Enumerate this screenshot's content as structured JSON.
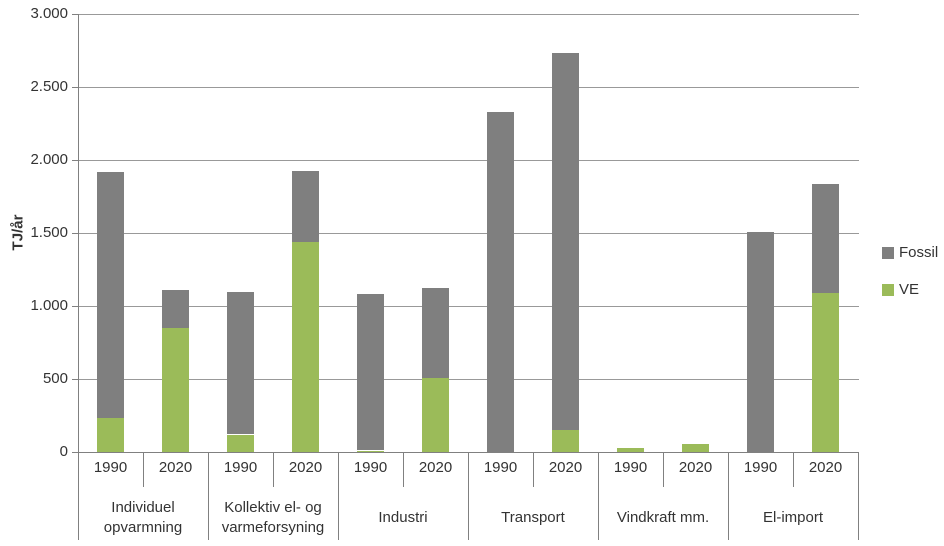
{
  "chart_data": {
    "type": "bar",
    "stacked": true,
    "title": "",
    "ylabel": "TJ/år",
    "xlabel": "",
    "ylim": [
      0,
      3000
    ],
    "ytick_step": 500,
    "ytick_labels": [
      "0",
      "500",
      "1.000",
      "1.500",
      "2.000",
      "2.500",
      "3.000"
    ],
    "grid": true,
    "legend_position": "right",
    "categories": [
      "1990",
      "2020",
      "1990",
      "2020",
      "1990",
      "2020",
      "1990",
      "2020",
      "1990",
      "2020",
      "1990",
      "2020"
    ],
    "group_labels": [
      {
        "lines": [
          "Individuel",
          "opvarmning"
        ]
      },
      {
        "lines": [
          "Kollektiv el- og",
          "varmeforsyning"
        ]
      },
      {
        "lines": [
          "Industri"
        ]
      },
      {
        "lines": [
          "Transport"
        ]
      },
      {
        "lines": [
          "Vindkraft mm."
        ]
      },
      {
        "lines": [
          "El-import"
        ]
      }
    ],
    "series": [
      {
        "name": "Fossil",
        "color": "#7F7F7F",
        "values": [
          1690,
          260,
          975,
          485,
          1070,
          615,
          2330,
          2585,
          0,
          0,
          1510,
          745
        ]
      },
      {
        "name": "VE",
        "color": "#9BBB59",
        "values": [
          230,
          850,
          120,
          1440,
          10,
          510,
          0,
          150,
          25,
          55,
          0,
          1090
        ]
      }
    ],
    "stack_order_bottom_to_top": [
      "VE",
      "Fossil"
    ],
    "bar_totals": [
      1920,
      1110,
      1095,
      1925,
      1080,
      1125,
      2330,
      2735,
      25,
      55,
      1510,
      1835
    ],
    "colors": {
      "axis": "#808080",
      "gridline": "#999999",
      "text": "#333333",
      "background": "#FFFFFF"
    }
  }
}
